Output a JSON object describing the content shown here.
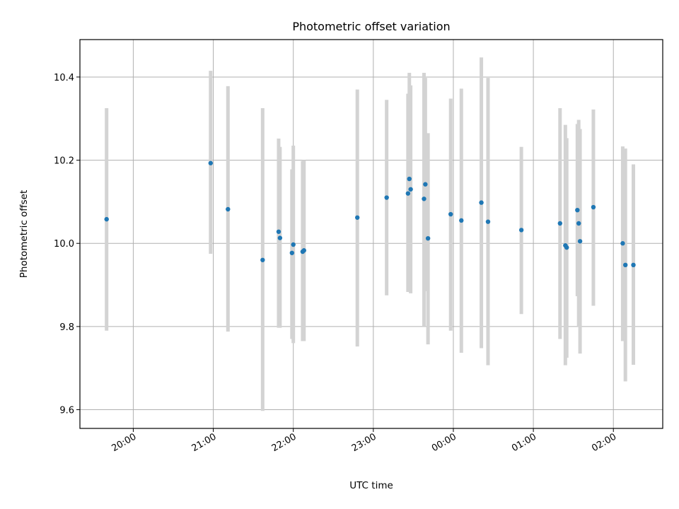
{
  "chart_data": {
    "type": "scatter",
    "title": "Photometric offset variation",
    "xlabel": "UTC time",
    "ylabel": "Photometric offset",
    "x_axis_type": "time",
    "x_range": [
      "2024-01-01T19:20",
      "2024-01-02T02:37"
    ],
    "ylim": [
      9.555,
      10.49
    ],
    "x_ticks": [
      "2024-01-01T20:00",
      "2024-01-01T21:00",
      "2024-01-01T22:00",
      "2024-01-01T23:00",
      "2024-01-02T00:00",
      "2024-01-02T01:00",
      "2024-01-02T02:00"
    ],
    "x_tick_labels": [
      "20:00",
      "21:00",
      "22:00",
      "23:00",
      "00:00",
      "01:00",
      "02:00"
    ],
    "y_ticks": [
      9.6,
      9.8,
      10.0,
      10.2,
      10.4
    ],
    "y_tick_labels": [
      "9.6",
      "9.8",
      "10.0",
      "10.2",
      "10.4"
    ],
    "grid": true,
    "point_color": "#1f77b4",
    "errorbar_color": "#d3d3d3",
    "points": [
      {
        "x": "2024-01-01T19:40",
        "y": 10.058,
        "err_low": 9.79,
        "err_high": 10.325
      },
      {
        "x": "2024-01-01T20:58",
        "y": 10.193,
        "err_low": 9.975,
        "err_high": 10.415
      },
      {
        "x": "2024-01-01T21:11",
        "y": 10.082,
        "err_low": 9.788,
        "err_high": 10.378
      },
      {
        "x": "2024-01-01T21:37",
        "y": 9.96,
        "err_low": 9.597,
        "err_high": 10.325
      },
      {
        "x": "2024-01-01T21:49",
        "y": 10.028,
        "err_low": 9.797,
        "err_high": 10.252
      },
      {
        "x": "2024-01-01T21:50",
        "y": 10.013,
        "err_low": 9.797,
        "err_high": 10.232
      },
      {
        "x": "2024-01-01T21:59",
        "y": 9.977,
        "err_low": 9.77,
        "err_high": 10.178
      },
      {
        "x": "2024-01-01T22:00",
        "y": 9.997,
        "err_low": 9.76,
        "err_high": 10.235
      },
      {
        "x": "2024-01-01T22:07",
        "y": 9.98,
        "err_low": 9.765,
        "err_high": 10.198
      },
      {
        "x": "2024-01-01T22:08",
        "y": 9.983,
        "err_low": 9.765,
        "err_high": 10.2
      },
      {
        "x": "2024-01-01T22:48",
        "y": 10.062,
        "err_low": 9.752,
        "err_high": 10.37
      },
      {
        "x": "2024-01-01T23:10",
        "y": 10.11,
        "err_low": 9.875,
        "err_high": 10.345
      },
      {
        "x": "2024-01-01T23:26",
        "y": 10.12,
        "err_low": 9.883,
        "err_high": 10.36
      },
      {
        "x": "2024-01-01T23:27",
        "y": 10.155,
        "err_low": 9.883,
        "err_high": 10.41
      },
      {
        "x": "2024-01-01T23:28",
        "y": 10.13,
        "err_low": 9.88,
        "err_high": 10.38
      },
      {
        "x": "2024-01-01T23:38",
        "y": 10.107,
        "err_low": 9.8,
        "err_high": 10.41
      },
      {
        "x": "2024-01-01T23:39",
        "y": 10.142,
        "err_low": 9.885,
        "err_high": 10.398
      },
      {
        "x": "2024-01-01T23:41",
        "y": 10.012,
        "err_low": 9.757,
        "err_high": 10.265
      },
      {
        "x": "2024-01-01T23:58",
        "y": 10.07,
        "err_low": 9.79,
        "err_high": 10.348
      },
      {
        "x": "2024-01-02T00:06",
        "y": 10.055,
        "err_low": 9.737,
        "err_high": 10.372
      },
      {
        "x": "2024-01-02T00:21",
        "y": 10.098,
        "err_low": 9.748,
        "err_high": 10.447
      },
      {
        "x": "2024-01-02T00:26",
        "y": 10.052,
        "err_low": 9.707,
        "err_high": 10.398
      },
      {
        "x": "2024-01-02T00:51",
        "y": 10.032,
        "err_low": 9.83,
        "err_high": 10.232
      },
      {
        "x": "2024-01-02T01:20",
        "y": 10.048,
        "err_low": 9.77,
        "err_high": 10.325
      },
      {
        "x": "2024-01-02T01:24",
        "y": 9.995,
        "err_low": 9.707,
        "err_high": 10.285
      },
      {
        "x": "2024-01-02T01:25",
        "y": 9.99,
        "err_low": 9.725,
        "err_high": 10.253
      },
      {
        "x": "2024-01-02T01:33",
        "y": 10.08,
        "err_low": 9.873,
        "err_high": 10.287
      },
      {
        "x": "2024-01-02T01:34",
        "y": 10.048,
        "err_low": 9.8,
        "err_high": 10.297
      },
      {
        "x": "2024-01-02T01:35",
        "y": 10.005,
        "err_low": 9.735,
        "err_high": 10.275
      },
      {
        "x": "2024-01-02T01:45",
        "y": 10.087,
        "err_low": 9.85,
        "err_high": 10.322
      },
      {
        "x": "2024-01-02T02:07",
        "y": 10.0,
        "err_low": 9.765,
        "err_high": 10.233
      },
      {
        "x": "2024-01-02T02:09",
        "y": 9.948,
        "err_low": 9.668,
        "err_high": 10.228
      },
      {
        "x": "2024-01-02T02:15",
        "y": 9.948,
        "err_low": 9.708,
        "err_high": 10.19
      }
    ]
  }
}
